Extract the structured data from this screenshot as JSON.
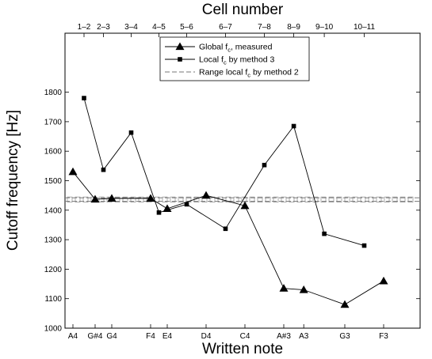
{
  "chart_data": {
    "type": "line",
    "title": "",
    "xlabel": "Written note",
    "x2label": "Cell number",
    "ylabel": "Cutoff frequency [Hz]",
    "ylim": [
      1000,
      2000
    ],
    "yticks": [
      1000,
      1100,
      1200,
      1300,
      1400,
      1500,
      1600,
      1700,
      1800
    ],
    "x_range": [
      0,
      30
    ],
    "bottom_ticks": [
      {
        "label": "A4",
        "x": 0
      },
      {
        "label": "G#4",
        "x": 2
      },
      {
        "label": "G4",
        "x": 3.5
      },
      {
        "label": "F4",
        "x": 7
      },
      {
        "label": "E4",
        "x": 8.5
      },
      {
        "label": "D4",
        "x": 12
      },
      {
        "label": "C4",
        "x": 15.5
      },
      {
        "label": "A#3",
        "x": 19
      },
      {
        "label": "A3",
        "x": 20.8
      },
      {
        "label": "G3",
        "x": 24.5
      },
      {
        "label": "F3",
        "x": 28
      }
    ],
    "top_ticks": [
      {
        "label": "1–2",
        "x": 1
      },
      {
        "label": "2–3",
        "x": 2.75
      },
      {
        "label": "3–4",
        "x": 5.25
      },
      {
        "label": "4–5",
        "x": 7.75
      },
      {
        "label": "5–6",
        "x": 10.25
      },
      {
        "label": "6–7",
        "x": 13.75
      },
      {
        "label": "7–8",
        "x": 17.25
      },
      {
        "label": "8–9",
        "x": 19.9
      },
      {
        "label": "9–10",
        "x": 22.65
      },
      {
        "label": "10–11",
        "x": 26.25
      }
    ],
    "legend_position": "top-center",
    "series": [
      {
        "name": "Global f_c, measured",
        "legend_main": "Global f",
        "legend_sub": "c",
        "legend_rest": ", measured",
        "marker": "triangle",
        "line_style": "solid",
        "points": [
          {
            "x": 0,
            "y": 1530
          },
          {
            "x": 2,
            "y": 1437
          },
          {
            "x": 3.5,
            "y": 1440
          },
          {
            "x": 7,
            "y": 1440
          },
          {
            "x": 8.5,
            "y": 1405
          },
          {
            "x": 12,
            "y": 1450
          },
          {
            "x": 15.5,
            "y": 1415
          },
          {
            "x": 19,
            "y": 1135
          },
          {
            "x": 20.8,
            "y": 1130
          },
          {
            "x": 24.5,
            "y": 1080
          },
          {
            "x": 28,
            "y": 1160
          }
        ]
      },
      {
        "name": "Local f_c by method 3",
        "legend_main": "Local f",
        "legend_sub": "c",
        "legend_rest": " by method 3",
        "marker": "square",
        "line_style": "solid",
        "points": [
          {
            "x": 1,
            "y": 1780
          },
          {
            "x": 2.75,
            "y": 1537
          },
          {
            "x": 5.25,
            "y": 1663
          },
          {
            "x": 7.75,
            "y": 1392
          },
          {
            "x": 10.25,
            "y": 1420
          },
          {
            "x": 13.75,
            "y": 1337
          },
          {
            "x": 17.25,
            "y": 1553
          },
          {
            "x": 19.9,
            "y": 1685
          },
          {
            "x": 22.65,
            "y": 1320
          },
          {
            "x": 26.25,
            "y": 1280
          }
        ]
      },
      {
        "name": "Range local f_c by method 2",
        "legend_main": "Range local f",
        "legend_sub": "c",
        "legend_rest": " by method 2",
        "marker": "square-open",
        "line_style": "dashed-band",
        "band": [
          1430,
          1442
        ]
      }
    ]
  }
}
